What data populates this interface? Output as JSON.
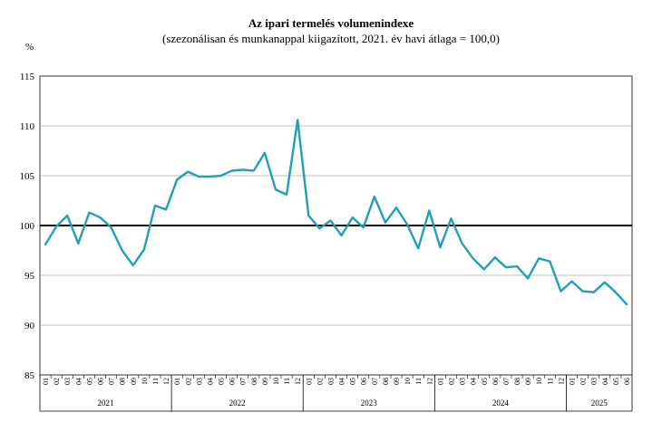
{
  "chart_data": {
    "type": "line",
    "title": "Az ipari termelés volumenindexe",
    "subtitle": "(szezonálisan és munkanappal kiigazított, 2021. év havi átlaga = 100,0)",
    "ylabel": "%",
    "ylim": [
      85,
      115
    ],
    "yticks": [
      85,
      90,
      95,
      100,
      105,
      110,
      115
    ],
    "grid": true,
    "reference_line": 100,
    "line_color": "#1fa0b8",
    "months": [
      "01",
      "02",
      "03",
      "04",
      "05",
      "06",
      "07",
      "08",
      "09",
      "10",
      "11",
      "12"
    ],
    "years": [
      {
        "label": "2021",
        "months": 12
      },
      {
        "label": "2022",
        "months": 12
      },
      {
        "label": "2023",
        "months": 12
      },
      {
        "label": "2024",
        "months": 12
      },
      {
        "label": "2025",
        "months": 6
      }
    ],
    "values": [
      98.1,
      99.9,
      101.0,
      98.2,
      101.3,
      100.8,
      99.8,
      97.5,
      96.0,
      97.6,
      102.0,
      101.6,
      104.6,
      105.4,
      104.9,
      104.9,
      105.0,
      105.5,
      105.6,
      105.5,
      107.3,
      103.6,
      103.1,
      110.6,
      101.0,
      99.7,
      100.5,
      99.0,
      100.8,
      99.8,
      102.9,
      100.3,
      101.8,
      100.1,
      97.7,
      101.5,
      97.8,
      100.7,
      98.2,
      96.7,
      95.6,
      96.8,
      95.8,
      95.9,
      94.7,
      96.7,
      96.4,
      93.4,
      94.4,
      93.4,
      93.3,
      94.3,
      93.3,
      92.1
    ]
  }
}
